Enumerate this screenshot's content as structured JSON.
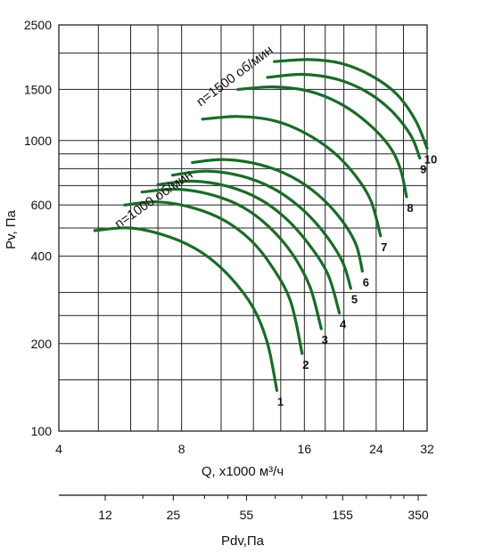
{
  "chart_data": {
    "type": "line",
    "xlabel": "Q, x1000 м³/ч",
    "ylabel": "Pv, Па",
    "x_scale": "log",
    "y_scale": "log",
    "xlim": [
      4,
      32
    ],
    "ylim": [
      100,
      2500
    ],
    "x_ticks": [
      "4",
      "8",
      "16",
      "24",
      "32"
    ],
    "y_ticks": [
      "100",
      "200",
      "400",
      "600",
      "1000",
      "1500",
      "2500"
    ],
    "secondary_axis": {
      "label": "Pdv,Па",
      "ticks": [
        "12",
        "25",
        "55",
        "155",
        "350"
      ]
    },
    "curve_color": "#1a6b2a",
    "annotations": [
      "n=1000 об/мин",
      "n=1500 об/мин"
    ],
    "series": [
      {
        "name": "1",
        "points": [
          [
            4.9,
            490
          ],
          [
            6.0,
            500
          ],
          [
            7.5,
            465
          ],
          [
            9.0,
            410
          ],
          [
            10.5,
            340
          ],
          [
            12.0,
            265
          ],
          [
            13.0,
            200
          ],
          [
            13.7,
            138
          ]
        ]
      },
      {
        "name": "2",
        "points": [
          [
            5.8,
            600
          ],
          [
            7.0,
            615
          ],
          [
            8.6,
            585
          ],
          [
            10.2,
            530
          ],
          [
            11.8,
            455
          ],
          [
            13.3,
            370
          ],
          [
            14.8,
            280
          ],
          [
            15.8,
            185
          ]
        ]
      },
      {
        "name": "3",
        "points": [
          [
            6.4,
            665
          ],
          [
            7.8,
            680
          ],
          [
            9.5,
            650
          ],
          [
            11.3,
            590
          ],
          [
            13.1,
            505
          ],
          [
            14.9,
            410
          ],
          [
            16.5,
            315
          ],
          [
            17.6,
            225
          ]
        ]
      },
      {
        "name": "4",
        "points": [
          [
            7.0,
            705
          ],
          [
            8.5,
            725
          ],
          [
            10.4,
            695
          ],
          [
            12.4,
            630
          ],
          [
            14.4,
            540
          ],
          [
            16.4,
            440
          ],
          [
            18.3,
            345
          ],
          [
            19.5,
            255
          ]
        ]
      },
      {
        "name": "5",
        "points": [
          [
            7.6,
            760
          ],
          [
            9.2,
            785
          ],
          [
            11.2,
            755
          ],
          [
            13.4,
            685
          ],
          [
            15.6,
            590
          ],
          [
            17.8,
            485
          ],
          [
            19.8,
            385
          ],
          [
            20.8,
            310
          ]
        ]
      },
      {
        "name": "6",
        "points": [
          [
            8.5,
            840
          ],
          [
            10.2,
            860
          ],
          [
            12.5,
            825
          ],
          [
            14.9,
            750
          ],
          [
            17.3,
            650
          ],
          [
            19.6,
            540
          ],
          [
            21.4,
            440
          ],
          [
            22.2,
            355
          ]
        ]
      },
      {
        "name": "7",
        "points": [
          [
            9.0,
            1185
          ],
          [
            11.0,
            1210
          ],
          [
            13.5,
            1170
          ],
          [
            16.1,
            1060
          ],
          [
            18.8,
            915
          ],
          [
            21.3,
            760
          ],
          [
            23.3,
            620
          ],
          [
            24.6,
            470
          ]
        ]
      },
      {
        "name": "8",
        "points": [
          [
            11.0,
            1500
          ],
          [
            13.5,
            1530
          ],
          [
            16.4,
            1480
          ],
          [
            19.5,
            1345
          ],
          [
            22.7,
            1160
          ],
          [
            25.8,
            960
          ],
          [
            27.5,
            800
          ],
          [
            28.5,
            640
          ]
        ]
      },
      {
        "name": "9",
        "points": [
          [
            13.0,
            1650
          ],
          [
            15.8,
            1690
          ],
          [
            19.1,
            1630
          ],
          [
            22.6,
            1480
          ],
          [
            26.1,
            1270
          ],
          [
            29.2,
            1040
          ],
          [
            30.7,
            870
          ]
        ]
      },
      {
        "name": "10",
        "points": [
          [
            13.5,
            1870
          ],
          [
            16.5,
            1900
          ],
          [
            19.8,
            1840
          ],
          [
            23.4,
            1670
          ],
          [
            27.0,
            1440
          ],
          [
            30.0,
            1170
          ],
          [
            32.0,
            940
          ]
        ]
      }
    ]
  }
}
